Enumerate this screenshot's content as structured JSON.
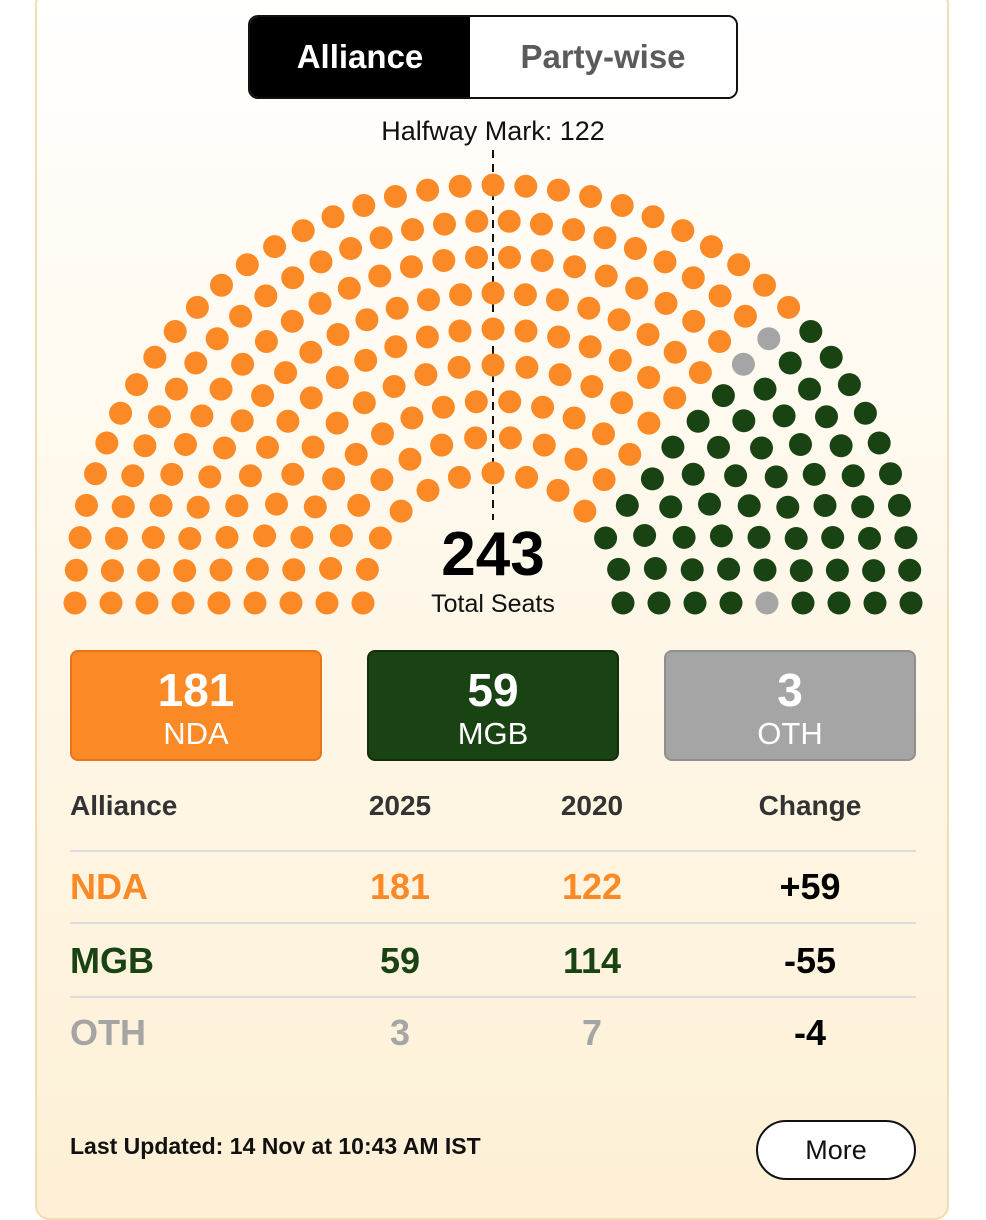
{
  "toggle": {
    "alliance": "Alliance",
    "party_wise": "Party-wise"
  },
  "halfway_label": "Halfway Mark: 122",
  "total": {
    "number": "243",
    "label": "Total Seats"
  },
  "colors": {
    "nda": "#fb8a26",
    "mgb": "#1a4314",
    "oth": "#a5a5a5"
  },
  "boxes": [
    {
      "count": "181",
      "name": "NDA"
    },
    {
      "count": "59",
      "name": "MGB"
    },
    {
      "count": "3",
      "name": "OTH"
    }
  ],
  "table": {
    "headers": [
      "Alliance",
      "2025",
      "2020",
      "Change"
    ],
    "rows": [
      {
        "alliance": "NDA",
        "y2025": "181",
        "y2020": "122",
        "change": "+59"
      },
      {
        "alliance": "MGB",
        "y2025": "59",
        "y2020": "114",
        "change": "-55"
      },
      {
        "alliance": "OTH",
        "y2025": "3",
        "y2020": "7",
        "change": "-4"
      }
    ]
  },
  "chart_data": {
    "type": "parliament",
    "total": 243,
    "halfway": 122,
    "series": [
      {
        "name": "NDA",
        "value": 181,
        "color": "#fb8a26"
      },
      {
        "name": "OTH",
        "value": 2,
        "color": "#a5a5a5"
      },
      {
        "name": "MGB",
        "value": 59,
        "color": "#1a4314"
      },
      {
        "name": "OTH",
        "value": 1,
        "color": "#a5a5a5"
      }
    ]
  },
  "footer": {
    "updated": "Last Updated: 14 Nov at 10:43 AM IST",
    "more": "More"
  }
}
